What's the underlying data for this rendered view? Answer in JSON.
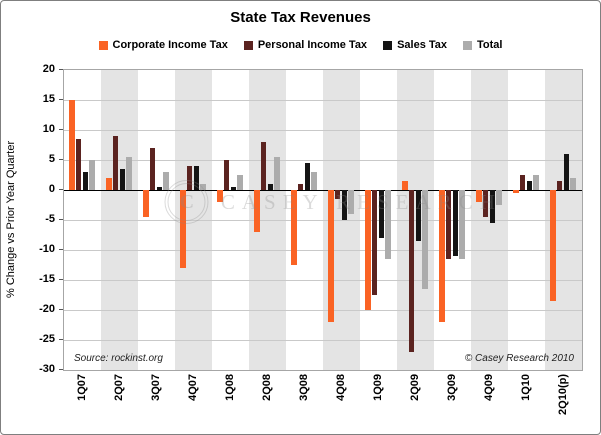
{
  "figure": {
    "title": "State Tax Revenues",
    "ylabel": "% Change vs Prior Year Quarter",
    "source": "Source: rockinst.org",
    "copyright": "© Casey Research 2010",
    "watermark_symbol": "C",
    "watermark_text": "CASEY RESEARCH"
  },
  "chart_data": {
    "type": "bar",
    "title": "State Tax Revenues",
    "xlabel": "",
    "ylabel": "% Change vs Prior Year Quarter",
    "ylim": [
      -30,
      20
    ],
    "ytick_step": 5,
    "yticks": [
      20,
      15,
      10,
      5,
      0,
      -5,
      -10,
      -15,
      -20,
      -25,
      -30
    ],
    "grid": true,
    "legend_position": "top",
    "band_color": "#e4e4e4",
    "categories": [
      "1Q07",
      "2Q07",
      "3Q07",
      "4Q07",
      "1Q08",
      "2Q08",
      "3Q08",
      "4Q08",
      "1Q09",
      "2Q09",
      "3Q09",
      "4Q09",
      "1Q10",
      "2Q10(p)"
    ],
    "series": [
      {
        "name": "Corporate Income Tax",
        "color": "#fa6324",
        "values": [
          15,
          2,
          -4.5,
          -13,
          -2,
          -7,
          -12.5,
          -22,
          -20,
          1.5,
          -22,
          -2,
          -0.5,
          -18.5
        ]
      },
      {
        "name": "Personal Income Tax",
        "color": "#5b2320",
        "values": [
          8.5,
          9,
          7,
          4,
          5,
          8,
          1,
          -1.5,
          -17.5,
          -27,
          -11.5,
          -4.5,
          2.5,
          1.5
        ]
      },
      {
        "name": "Sales Tax",
        "color": "#141414",
        "values": [
          3,
          3.5,
          0.5,
          4,
          0.5,
          1,
          4.5,
          -5,
          -8,
          -8.5,
          -11,
          -5.5,
          1.5,
          6
        ]
      },
      {
        "name": "Total",
        "color": "#acacac",
        "values": [
          5,
          5.5,
          3,
          1,
          2.5,
          5.5,
          3,
          -4,
          -11.5,
          -16.5,
          -11.5,
          -2.5,
          2.5,
          2
        ]
      }
    ]
  }
}
